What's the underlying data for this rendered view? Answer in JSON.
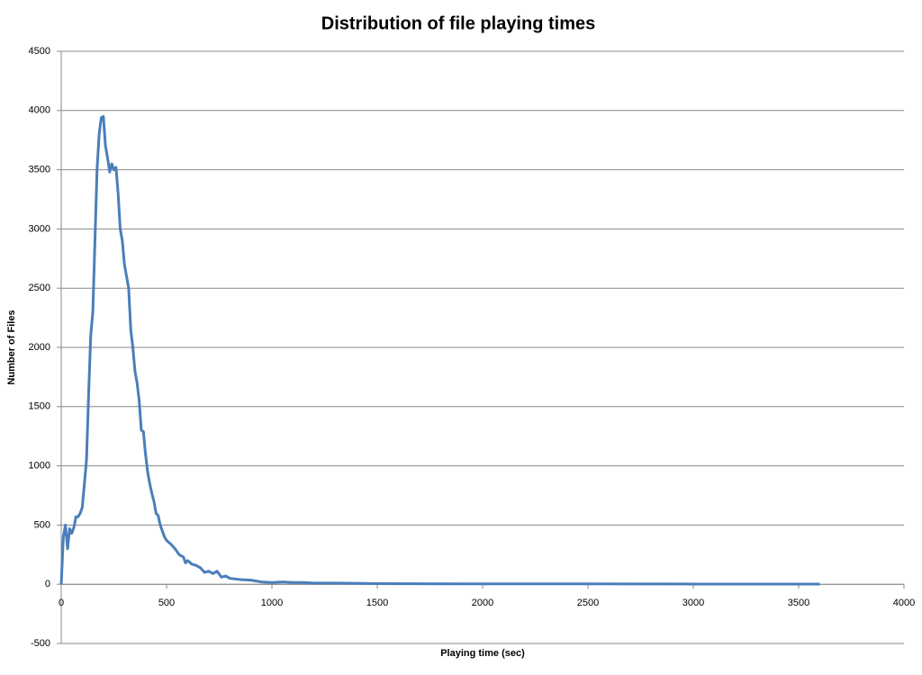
{
  "chart_data": {
    "type": "line",
    "title": "Distribution of file playing times",
    "x_label": "Playing time (sec)",
    "y_label": "Number of Files",
    "color": "#4a7ebb",
    "grid": true,
    "xlim": [
      0,
      4000
    ],
    "xticks": [
      0,
      500,
      1000,
      1500,
      2000,
      2500,
      3000,
      3500,
      4000
    ],
    "ylim": [
      -500,
      4500
    ],
    "yticks": [
      -500,
      0,
      500,
      1000,
      1500,
      2000,
      2500,
      3000,
      3500,
      4000,
      4500
    ],
    "x": [
      0,
      10,
      20,
      30,
      40,
      50,
      60,
      70,
      80,
      90,
      100,
      110,
      120,
      130,
      140,
      150,
      160,
      170,
      180,
      190,
      200,
      210,
      220,
      230,
      240,
      250,
      260,
      270,
      280,
      290,
      300,
      310,
      320,
      330,
      340,
      350,
      360,
      370,
      380,
      390,
      400,
      410,
      420,
      430,
      440,
      450,
      460,
      470,
      480,
      490,
      500,
      520,
      540,
      560,
      580,
      590,
      600,
      620,
      640,
      660,
      680,
      700,
      720,
      740,
      760,
      780,
      800,
      850,
      900,
      950,
      1000,
      1050,
      1100,
      1150,
      1200,
      1300,
      1400,
      1500,
      1700,
      2000,
      2500,
      3000,
      3600
    ],
    "values": [
      0,
      400,
      500,
      300,
      470,
      430,
      480,
      570,
      570,
      600,
      650,
      850,
      1050,
      1600,
      2100,
      2300,
      2900,
      3500,
      3800,
      3940,
      3950,
      3700,
      3600,
      3480,
      3550,
      3500,
      3520,
      3300,
      3000,
      2900,
      2700,
      2600,
      2500,
      2150,
      2000,
      1800,
      1700,
      1550,
      1300,
      1290,
      1100,
      950,
      850,
      770,
      700,
      600,
      580,
      500,
      450,
      400,
      370,
      340,
      300,
      250,
      230,
      180,
      200,
      170,
      160,
      140,
      100,
      110,
      90,
      110,
      60,
      70,
      50,
      40,
      35,
      20,
      15,
      20,
      15,
      15,
      10,
      10,
      8,
      5,
      4,
      3,
      3,
      2,
      2
    ]
  }
}
